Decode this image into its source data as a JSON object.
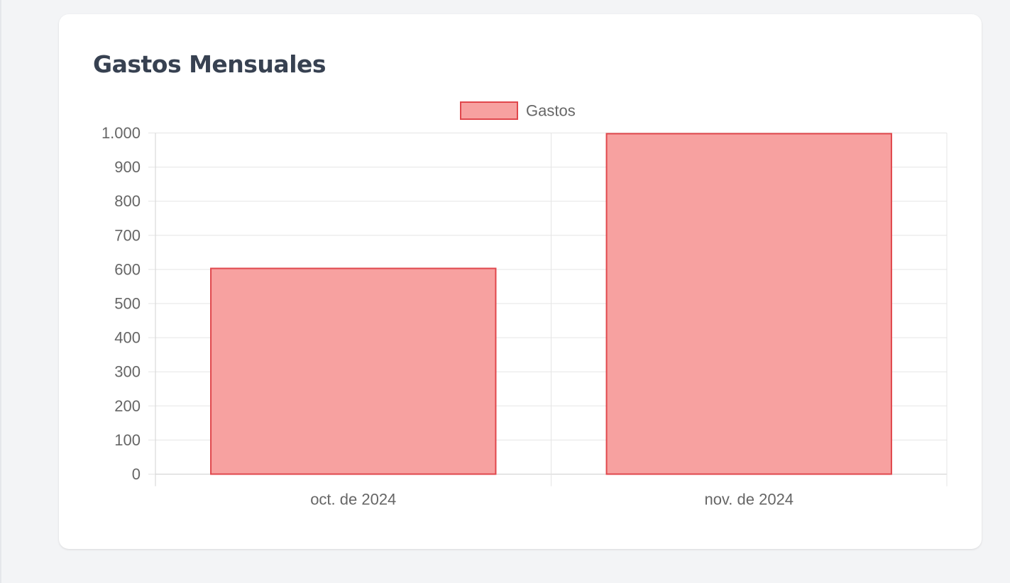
{
  "card": {
    "title": "Gastos Mensuales"
  },
  "chart_data": {
    "type": "bar",
    "categories": [
      "oct. de 2024",
      "nov. de 2024"
    ],
    "series": [
      {
        "name": "Gastos",
        "values": [
          603,
          998
        ],
        "fill": "#f7a1a0",
        "stroke": "#e0474c"
      }
    ],
    "ylim": [
      0,
      1000
    ],
    "yticks": [
      0,
      100,
      200,
      300,
      400,
      500,
      600,
      700,
      800,
      900,
      1000
    ],
    "ytick_labels": [
      "0",
      "100",
      "200",
      "300",
      "400",
      "500",
      "600",
      "700",
      "800",
      "900",
      "1.000"
    ],
    "grid": true,
    "legend": "top-center",
    "title": "",
    "xlabel": "",
    "ylabel": ""
  }
}
